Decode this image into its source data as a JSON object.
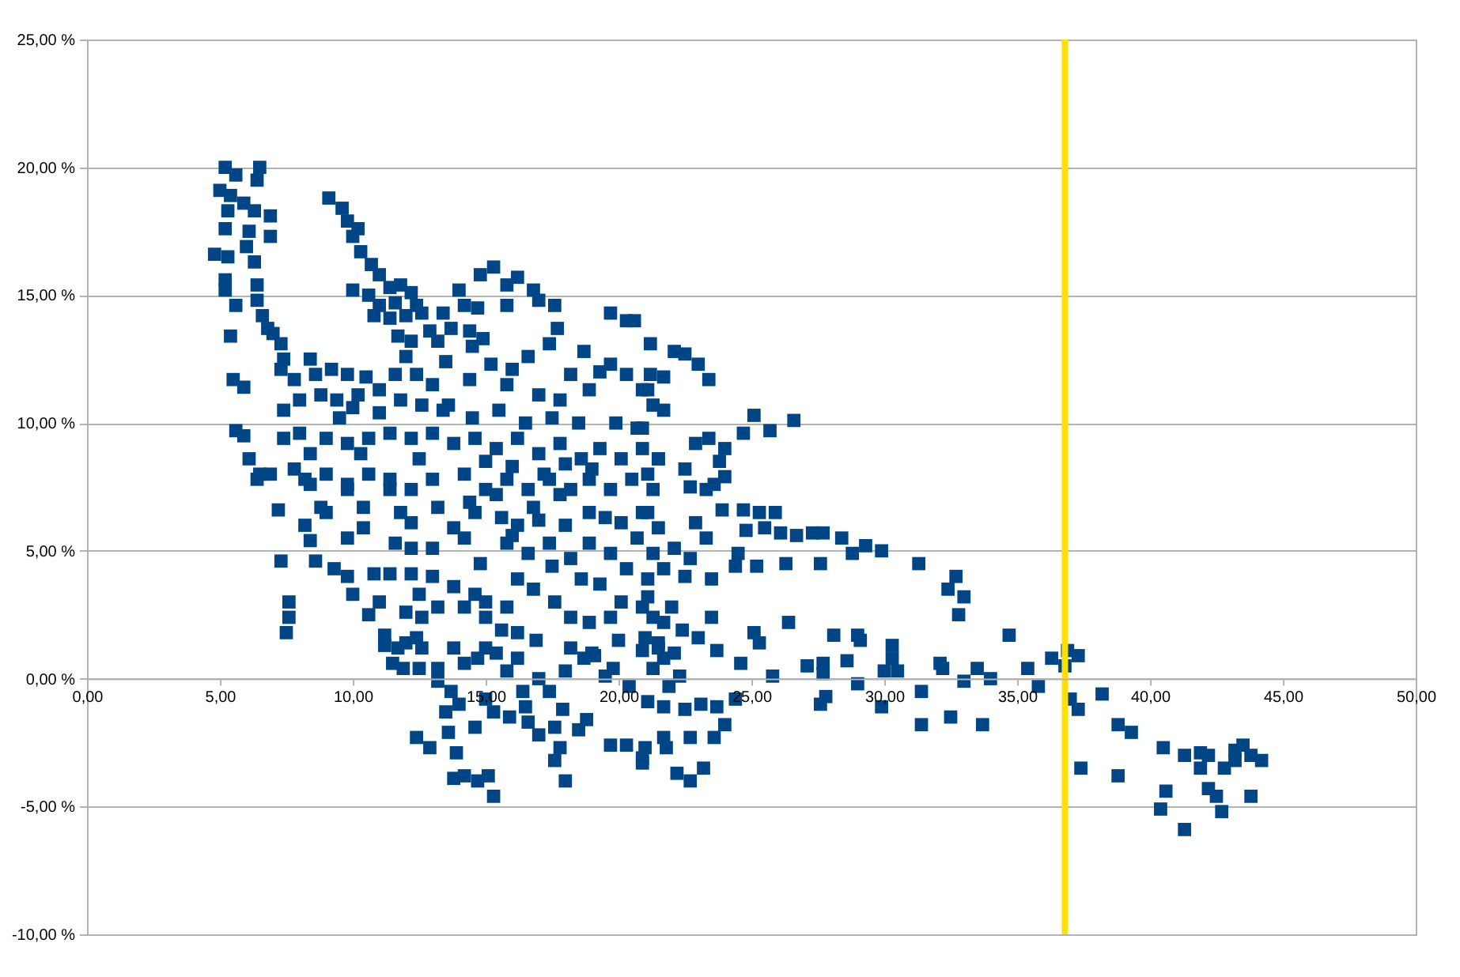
{
  "chart_data": {
    "type": "scatter",
    "xlim": [
      0,
      50
    ],
    "ylim": [
      -10,
      25
    ],
    "xticks": [
      {
        "value": 0,
        "label": "0,00"
      },
      {
        "value": 5,
        "label": "5,00"
      },
      {
        "value": 10,
        "label": "10,00"
      },
      {
        "value": 15,
        "label": "15,00"
      },
      {
        "value": 20,
        "label": "20,00"
      },
      {
        "value": 25,
        "label": "25,00"
      },
      {
        "value": 30,
        "label": "30,00"
      },
      {
        "value": 35,
        "label": "35,00"
      },
      {
        "value": 40,
        "label": "40,00"
      },
      {
        "value": 45,
        "label": "45,00"
      },
      {
        "value": 50,
        "label": "50,00"
      }
    ],
    "yticks": [
      {
        "value": -10,
        "label": "-10,00 %"
      },
      {
        "value": -5,
        "label": "-5,00 %"
      },
      {
        "value": 0,
        "label": "0,00 %"
      },
      {
        "value": 5,
        "label": "5,00 %"
      },
      {
        "value": 10,
        "label": "10,00 %"
      },
      {
        "value": 15,
        "label": "15,00 %"
      },
      {
        "value": 20,
        "label": "20,00 %"
      },
      {
        "value": 25,
        "label": "25,00 %"
      }
    ],
    "grid": "y",
    "marker": "square",
    "color": "#004586",
    "ref_lines": [
      {
        "axis": "x",
        "value": 36.8,
        "color": "#ffe000"
      }
    ],
    "x": [
      5.2,
      6.5,
      5.6,
      6.4,
      5.0,
      5.4,
      5.9,
      6.3,
      6.9,
      5.3,
      5.2,
      6.1,
      6.9,
      4.8,
      5.3,
      6.0,
      6.3,
      5.2,
      5.2,
      6.4,
      5.6,
      6.4,
      6.6,
      6.8,
      7.0,
      5.4,
      7.3,
      7.4,
      5.5,
      5.9,
      5.6,
      5.9,
      6.1,
      6.5,
      6.4,
      6.9,
      9.1,
      9.6,
      9.8,
      10.2,
      10.0,
      10.3,
      10.7,
      11.0,
      10.0,
      10.6,
      11.4,
      11.8,
      12.2,
      11.0,
      11.6,
      12.4,
      10.8,
      11.4,
      12.0,
      12.6,
      11.7,
      12.2,
      12.9,
      13.4,
      14.0,
      14.8,
      15.3,
      15.8,
      16.2,
      16.8,
      17.0,
      17.6,
      15.8,
      14.2,
      14.7,
      17.7,
      17.4,
      13.7,
      14.4,
      14.9,
      14.5,
      13.2,
      19.7,
      20.3,
      21.2,
      20.6,
      25.1,
      26.6,
      25.7,
      24.7,
      22.1,
      22.5,
      23.0,
      23.4,
      21.7,
      23.4,
      22.9,
      23.8,
      22.5,
      24.0,
      23.3,
      22.7,
      23.9,
      24.7,
      25.3,
      25.9,
      24.8,
      25.5,
      26.1,
      26.7,
      27.3,
      27.7,
      28.4,
      29.3,
      28.8,
      29.9,
      31.3,
      24.5,
      25.2,
      26.3,
      27.6,
      24.4,
      32.7,
      32.4,
      33.0,
      32.8,
      23.5,
      25.1,
      25.3,
      26.4,
      23.0,
      23.7,
      24.6,
      25.8,
      27.1,
      27.7,
      27.7,
      28.1,
      29.0,
      29.1,
      28.6,
      29.0,
      30.0,
      30.3,
      30.3,
      30.5,
      31.4,
      32.1,
      32.2,
      33.5,
      34.7,
      33.0,
      34.0,
      35.4,
      35.8,
      36.3,
      36.9,
      37.3,
      36.8,
      29.9,
      31.4,
      32.5,
      33.7,
      27.8,
      27.6,
      37.0,
      37.3,
      37.4,
      38.2,
      38.8,
      39.3,
      38.8,
      40.5,
      41.3,
      41.9,
      42.2,
      41.9,
      42.8,
      43.2,
      43.5,
      43.2,
      43.8,
      44.2,
      40.6,
      40.4,
      42.2,
      42.5,
      42.7,
      43.8,
      41.3,
      20.9,
      21.7,
      22.3,
      21.7,
      22.5,
      23.1,
      24.0,
      23.6,
      22.7,
      21.7,
      21.0,
      20.9,
      22.2,
      22.7,
      23.2,
      21.8,
      24.4,
      23.7,
      7.2,
      7.3,
      7.6,
      7.6,
      7.5,
      8.2,
      8.4,
      8.6,
      9.3,
      9.8,
      10.6,
      11.2,
      11.7,
      12.4,
      11.5,
      11.9,
      12.5,
      13.2,
      13.8,
      14.2,
      13.2,
      13.7,
      13.5,
      13.6,
      12.4,
      12.9,
      13.9,
      13.8,
      14.2,
      14.7,
      15.1,
      15.3,
      15.0,
      15.3,
      15.9,
      14.6,
      16.5,
      17.0,
      17.4,
      17.9,
      16.6,
      17.0,
      17.6,
      17.8,
      17.6,
      18.0,
      18.5,
      19.7,
      20.3,
      20.9,
      16.9,
      18.2,
      18.7,
      19.1,
      19.5,
      19.8,
      20.4,
      21.0,
      21.5,
      15.8,
      16.4,
      15.0,
      15.4,
      14.7,
      11.2,
      12.0,
      12.6,
      8.4,
      8.8,
      9.8,
      10.4,
      11.4,
      11.8,
      12.2,
      9.8,
      10.4,
      11.6,
      12.2,
      10.8,
      11.4,
      12.2,
      13.0,
      13.8,
      14.6,
      13.2,
      12.0,
      12.6,
      14.2,
      15.0,
      15.8,
      16.2,
      15.6,
      15.0,
      16.2,
      16.8,
      17.6,
      18.2,
      18.9,
      19.7,
      20.1,
      20.9,
      21.3,
      18.6,
      19.3,
      20.3,
      21.1,
      15.8,
      16.6,
      17.4,
      18.2,
      18.9,
      19.7,
      20.7,
      21.3,
      13.8,
      14.6,
      15.4,
      13.2,
      16.8,
      17.8,
      18.9,
      20.1,
      21.1,
      14.2,
      13.0,
      8.4,
      7.3,
      7.8,
      8.6,
      9.2,
      9.8,
      10.5,
      7.4,
      8.0,
      8.8,
      9.4,
      10.2,
      11.0,
      11.6,
      12.4,
      13.0,
      11.8,
      12.6,
      13.4,
      14.4,
      15.2,
      16.0,
      16.6,
      15.8,
      17.0,
      17.8,
      18.2,
      18.9,
      19.7,
      20.3,
      20.9,
      21.2,
      19.9,
      20.7,
      21.3,
      13.6,
      7.4,
      8.0,
      8.4,
      7.8,
      9.0,
      9.8,
      10.6,
      11.4,
      12.2,
      13.0,
      13.8,
      14.6,
      15.4,
      16.2,
      17.0,
      17.8,
      18.6,
      19.3,
      20.1,
      20.9,
      21.5,
      8.2,
      9.0,
      9.8,
      10.6,
      11.4,
      12.2,
      13.0,
      14.2,
      15.0,
      15.8,
      16.6,
      17.4,
      18.2,
      18.9,
      19.7,
      20.5,
      21.3,
      20.9,
      21.5,
      22.1,
      21.7,
      22.5,
      21.1,
      22.0,
      21.7,
      22.4,
      21.5,
      22.1,
      21.3,
      21.9,
      21.1,
      22.9,
      23.3,
      22.7,
      23.5,
      21.1,
      21.5,
      20.9,
      21.7,
      21.1,
      24.0,
      23.6,
      14.5,
      15.5,
      16.5,
      17.5,
      18.5,
      15.0,
      16.0,
      17.2,
      18.0,
      19.0,
      14.4,
      15.6,
      16.2,
      17.0,
      18.0,
      19.5,
      16.0,
      17.5,
      14.8,
      12.5,
      11.0,
      9.5,
      10.0,
      12.0,
      13.5,
      18.7,
      19.3,
      10.3,
      9.0,
      10.0,
      11.0,
      12.5,
      19.0,
      20.0,
      18.0,
      16.2,
      14.0,
      18.8
    ],
    "values": [
      20.0,
      20.0,
      19.7,
      19.5,
      19.1,
      18.9,
      18.6,
      18.3,
      18.1,
      18.3,
      17.6,
      17.5,
      17.3,
      16.6,
      16.5,
      16.9,
      16.3,
      15.6,
      15.2,
      15.4,
      14.6,
      14.8,
      14.2,
      13.7,
      13.5,
      13.4,
      13.1,
      12.5,
      11.7,
      11.4,
      9.7,
      9.5,
      8.6,
      8.0,
      7.8,
      8.0,
      18.8,
      18.4,
      17.9,
      17.6,
      17.3,
      16.7,
      16.2,
      15.8,
      15.2,
      15.0,
      15.3,
      15.4,
      15.1,
      14.6,
      14.7,
      14.6,
      14.2,
      14.1,
      14.2,
      14.3,
      13.4,
      13.2,
      13.6,
      14.3,
      15.2,
      15.8,
      16.1,
      15.4,
      15.7,
      15.2,
      14.8,
      14.6,
      14.6,
      14.6,
      14.5,
      13.7,
      13.1,
      13.7,
      13.6,
      13.3,
      13.0,
      13.2,
      14.3,
      14.0,
      13.1,
      14.0,
      10.3,
      10.1,
      9.7,
      9.6,
      12.8,
      12.7,
      12.3,
      11.7,
      11.8,
      9.4,
      9.2,
      8.5,
      8.2,
      7.9,
      7.4,
      7.5,
      6.6,
      6.6,
      6.5,
      6.5,
      5.8,
      5.9,
      5.7,
      5.6,
      5.7,
      5.7,
      5.5,
      5.2,
      4.9,
      5.0,
      4.5,
      4.9,
      4.4,
      4.5,
      4.5,
      4.4,
      4.0,
      3.5,
      3.2,
      2.5,
      2.4,
      1.8,
      1.4,
      2.2,
      1.6,
      1.1,
      0.6,
      0.1,
      0.5,
      0.6,
      0.2,
      1.7,
      1.7,
      1.5,
      0.7,
      -0.2,
      0.3,
      1.3,
      0.8,
      0.3,
      -0.5,
      0.6,
      0.4,
      0.4,
      1.7,
      -0.1,
      0.0,
      0.4,
      -0.3,
      0.8,
      1.1,
      0.9,
      0.5,
      -1.1,
      -1.8,
      -1.5,
      -1.8,
      -0.7,
      -1.0,
      -0.8,
      -1.2,
      -3.5,
      -0.6,
      -1.8,
      -2.1,
      -3.8,
      -2.7,
      -3.0,
      -2.9,
      -3.0,
      -3.5,
      -3.5,
      -2.8,
      -2.6,
      -3.2,
      -3.0,
      -3.2,
      -4.4,
      -5.1,
      -4.3,
      -4.6,
      -5.2,
      -4.6,
      -5.9,
      1.1,
      0.8,
      0.1,
      -1.1,
      -1.2,
      -1.0,
      -1.8,
      -2.3,
      -2.3,
      -2.3,
      -2.7,
      -3.3,
      -3.7,
      -4.0,
      -3.5,
      -2.7,
      -0.8,
      -1.1,
      6.6,
      4.6,
      3.0,
      2.4,
      1.8,
      6.0,
      5.4,
      4.6,
      4.3,
      4.0,
      2.5,
      1.3,
      1.2,
      1.6,
      0.6,
      0.4,
      0.4,
      0.4,
      1.2,
      0.6,
      -0.1,
      -0.5,
      -1.3,
      -2.1,
      -2.3,
      -2.7,
      -2.9,
      -3.9,
      -3.8,
      -4.0,
      -3.8,
      -4.6,
      -0.8,
      -1.3,
      -1.5,
      -1.9,
      -1.1,
      0.0,
      -0.5,
      -1.2,
      -1.7,
      -2.2,
      -1.9,
      -2.7,
      -3.2,
      -4.0,
      -2.0,
      -2.6,
      -2.6,
      -3.1,
      1.5,
      1.2,
      0.8,
      0.9,
      0.1,
      0.4,
      -0.3,
      1.6,
      1.4,
      0.3,
      -0.5,
      1.2,
      1.0,
      0.8,
      1.7,
      1.4,
      1.2,
      7.6,
      6.7,
      7.4,
      6.7,
      7.4,
      6.5,
      6.1,
      5.5,
      5.9,
      5.3,
      5.1,
      4.1,
      4.1,
      4.1,
      4.0,
      3.6,
      3.3,
      2.8,
      2.6,
      2.4,
      2.8,
      2.4,
      2.8,
      1.8,
      1.9,
      3.0,
      3.9,
      3.5,
      3.0,
      2.4,
      2.2,
      2.4,
      3.0,
      2.8,
      2.4,
      3.9,
      3.7,
      4.3,
      3.9,
      5.3,
      4.9,
      5.3,
      4.7,
      5.3,
      4.9,
      5.5,
      4.9,
      5.9,
      6.5,
      7.2,
      6.7,
      6.7,
      7.2,
      6.5,
      6.1,
      6.5,
      5.5,
      5.1,
      12.5,
      12.1,
      11.7,
      11.9,
      12.1,
      11.9,
      11.8,
      10.5,
      10.9,
      11.1,
      10.9,
      11.1,
      11.3,
      11.9,
      11.9,
      11.5,
      10.9,
      10.7,
      10.5,
      11.7,
      12.3,
      12.1,
      12.6,
      11.5,
      11.1,
      10.9,
      11.9,
      11.3,
      12.3,
      11.9,
      11.3,
      11.9,
      10.0,
      9.8,
      10.7,
      10.7,
      9.4,
      9.6,
      8.8,
      8.2,
      9.4,
      9.2,
      9.4,
      9.6,
      9.4,
      9.6,
      9.2,
      9.4,
      9.0,
      9.4,
      8.8,
      9.2,
      8.6,
      9.0,
      8.6,
      9.0,
      8.6,
      7.8,
      8.0,
      7.6,
      8.0,
      7.8,
      7.4,
      7.8,
      8.0,
      7.4,
      7.8,
      7.4,
      7.8,
      7.4,
      7.8,
      7.4,
      7.8,
      7.4,
      6.5,
      5.9,
      5.1,
      4.3,
      4.0,
      3.2,
      2.8,
      2.2,
      1.9,
      1.2,
      1.0,
      0.4,
      -0.3,
      -0.9,
      6.1,
      5.5,
      4.7,
      3.9,
      8.0,
      8.6,
      9.8,
      10.5,
      11.3,
      9.0,
      7.6,
      10.2,
      10.5,
      10.0,
      10.2,
      10.0,
      8.5,
      8.3,
      8.0,
      8.4,
      8.2,
      6.9,
      6.3,
      6.0,
      6.2,
      6.0,
      6.3,
      5.6,
      4.4,
      4.5,
      8.6,
      10.4,
      10.2,
      10.6,
      12.6,
      12.4,
      12.8,
      12.0,
      8.8,
      6.5,
      3.3,
      3.0,
      3.3,
      1.0,
      1.5,
      0.3,
      0.8,
      -1.0,
      -1.6
    ]
  }
}
